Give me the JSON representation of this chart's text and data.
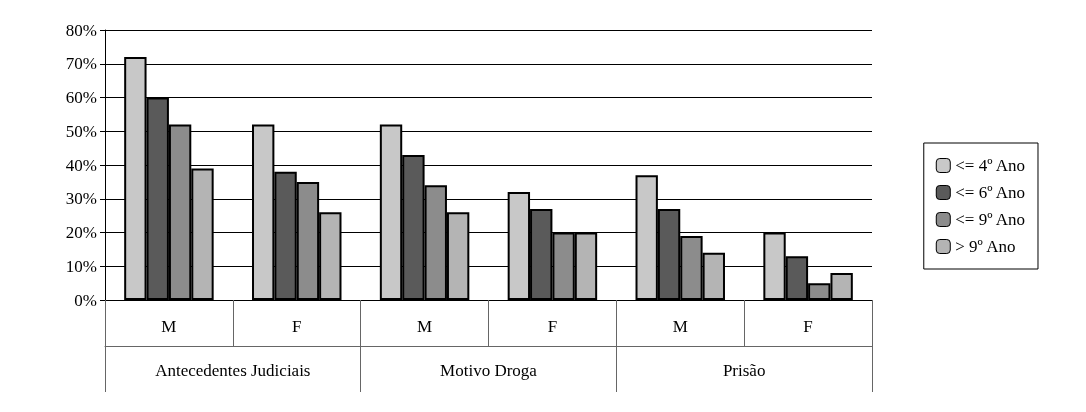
{
  "chart_data": {
    "type": "bar",
    "categories": [
      "M",
      "F",
      "M",
      "F",
      "M",
      "F"
    ],
    "series": [
      {
        "name": "<= 4º Ano",
        "color": "#c8c8c8",
        "values": [
          72,
          52,
          52,
          32,
          37,
          20
        ]
      },
      {
        "name": "<= 6º Ano",
        "color": "#5a5a5a",
        "values": [
          60,
          38,
          43,
          27,
          27,
          13
        ]
      },
      {
        "name": "<= 9º Ano",
        "color": "#8c8c8c",
        "values": [
          52,
          35,
          34,
          20,
          19,
          5
        ]
      },
      {
        "name": "> 9º Ano",
        "color": "#b4b4b4",
        "values": [
          39,
          26,
          26,
          20,
          14,
          8
        ]
      }
    ],
    "annotations": [
      "Antecedentes Judiciais",
      "Motivo Droga",
      "Prisão"
    ],
    "ylim": [
      0,
      80
    ],
    "yticks": [
      {
        "value": 0,
        "label": "0%"
      },
      {
        "value": 10,
        "label": "10%"
      },
      {
        "value": 20,
        "label": "20%"
      },
      {
        "value": 30,
        "label": "30%"
      },
      {
        "value": 40,
        "label": "40%"
      },
      {
        "value": 50,
        "label": "50%"
      },
      {
        "value": 60,
        "label": "60%"
      },
      {
        "value": 70,
        "label": "70%"
      },
      {
        "value": 80,
        "label": "80%"
      }
    ],
    "grid": "y",
    "legend": "right"
  }
}
